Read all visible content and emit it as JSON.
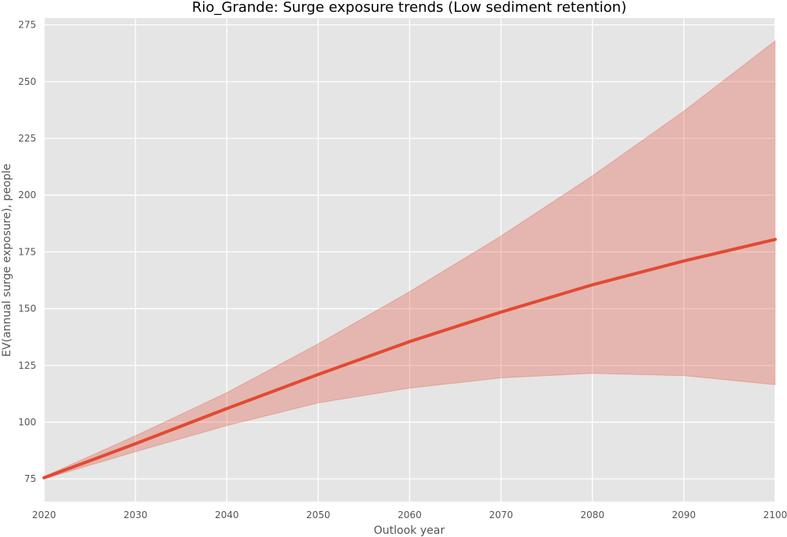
{
  "chart_data": {
    "type": "line",
    "title": "Rio_Grande: Surge exposure trends (Low sediment retention)",
    "xlabel": "Outlook year",
    "ylabel": "EV(annual surge exposure), people",
    "xlim": [
      2020,
      2100
    ],
    "ylim": [
      65,
      278
    ],
    "xticks": [
      2020,
      2030,
      2040,
      2050,
      2060,
      2070,
      2080,
      2090,
      2100
    ],
    "yticks": [
      75,
      100,
      125,
      150,
      175,
      200,
      225,
      250,
      275
    ],
    "grid": true,
    "series": [
      {
        "x": [
          2020,
          2030,
          2040,
          2050,
          2060,
          2070,
          2080,
          2090,
          2100
        ],
        "values": [
          75.5,
          90.5,
          106,
          121,
          135.5,
          148.5,
          160.5,
          171,
          180.5
        ],
        "upper": [
          76,
          94,
          113,
          134.5,
          157.5,
          182,
          208.5,
          237,
          268
        ],
        "lower": [
          75,
          87,
          98.5,
          108.5,
          115,
          119.5,
          121.5,
          120.5,
          116.5
        ]
      }
    ],
    "colors": {
      "line": "#e24a33",
      "band": "#e24a33",
      "plot_background": "#e5e5e5",
      "grid": "#ffffff"
    }
  }
}
